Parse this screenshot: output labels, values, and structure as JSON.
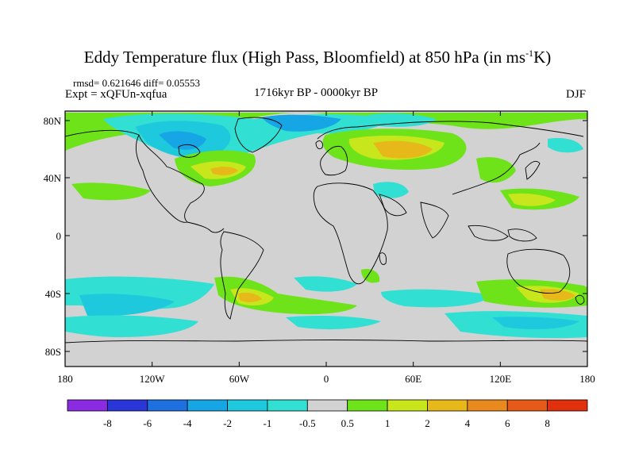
{
  "title": "Eddy Temperature flux (High Pass, Bloomfield) at 850 hPa (in ms",
  "title_sup": "-1",
  "title_end": "K)",
  "stats": "rmsd= 0.621646 diff= 0.05553",
  "expt": "Expt = xQFUn-xqfua",
  "period": "1716kyr BP - 0000kyr BP",
  "season": "DJF",
  "axes": {
    "lat_labels": [
      "80N",
      "40N",
      "0",
      "40S",
      "80S"
    ],
    "lon_labels": [
      "180",
      "120W",
      "60W",
      "0",
      "60E",
      "120E",
      "180"
    ]
  },
  "colorbar": {
    "labels": [
      "-8",
      "-6",
      "-4",
      "-2",
      "-1",
      "-0.5",
      "0.5",
      "1",
      "2",
      "4",
      "6",
      "8"
    ],
    "colors": [
      "#8a2be2",
      "#2a36d8",
      "#1e6fe0",
      "#16a6e6",
      "#1ec9de",
      "#31e0d2",
      "#d2d2d2",
      "#6ee31a",
      "#c8e61c",
      "#e6b81a",
      "#e88a1e",
      "#e45a16",
      "#e0300e"
    ]
  },
  "colors": {
    "land_background": "#d2d2d2",
    "coast": "#000000"
  }
}
